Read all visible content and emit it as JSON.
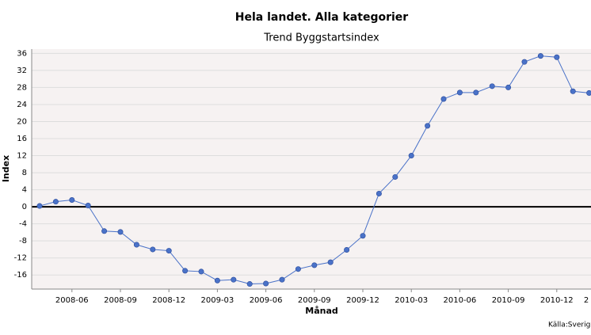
{
  "chart_data": {
    "type": "line",
    "title": "Hela landet. Alla kategorier",
    "subtitle": "Trend Byggstartsindex",
    "x_label": "Månad",
    "y_label": "Index",
    "source": "Källa:Sverig",
    "categories": [
      null,
      null,
      "2008-06",
      null,
      null,
      "2008-09",
      null,
      null,
      "2008-12",
      null,
      null,
      "2009-03",
      null,
      null,
      "2009-06",
      null,
      null,
      "2009-09",
      null,
      null,
      "2009-12",
      null,
      null,
      "2010-03",
      null,
      null,
      "2010-06",
      null,
      null,
      "2010-09",
      null,
      null,
      "2010-12",
      null,
      null,
      "2"
    ],
    "series": [
      {
        "name": "Index",
        "color": "#4a72c8",
        "values": [
          0.2,
          1.2,
          1.6,
          0.3,
          -5.7,
          -5.9,
          -8.9,
          -10,
          -10.3,
          -15,
          -15.2,
          -17.3,
          -17.1,
          -18.1,
          -18,
          -17.1,
          -14.6,
          -13.7,
          -13,
          -10.1,
          -6.8,
          3.1,
          7,
          12,
          19,
          25.3,
          26.8,
          26.8,
          28.3,
          28,
          34,
          35.4,
          35.1,
          27.1,
          26.7,
          null
        ]
      }
    ],
    "ylim": [
      -19.3,
      37
    ],
    "yticks": [
      -16,
      -12,
      -8,
      -4,
      0,
      4,
      8,
      12,
      16,
      20,
      24,
      28,
      32,
      36
    ],
    "grid": true
  }
}
